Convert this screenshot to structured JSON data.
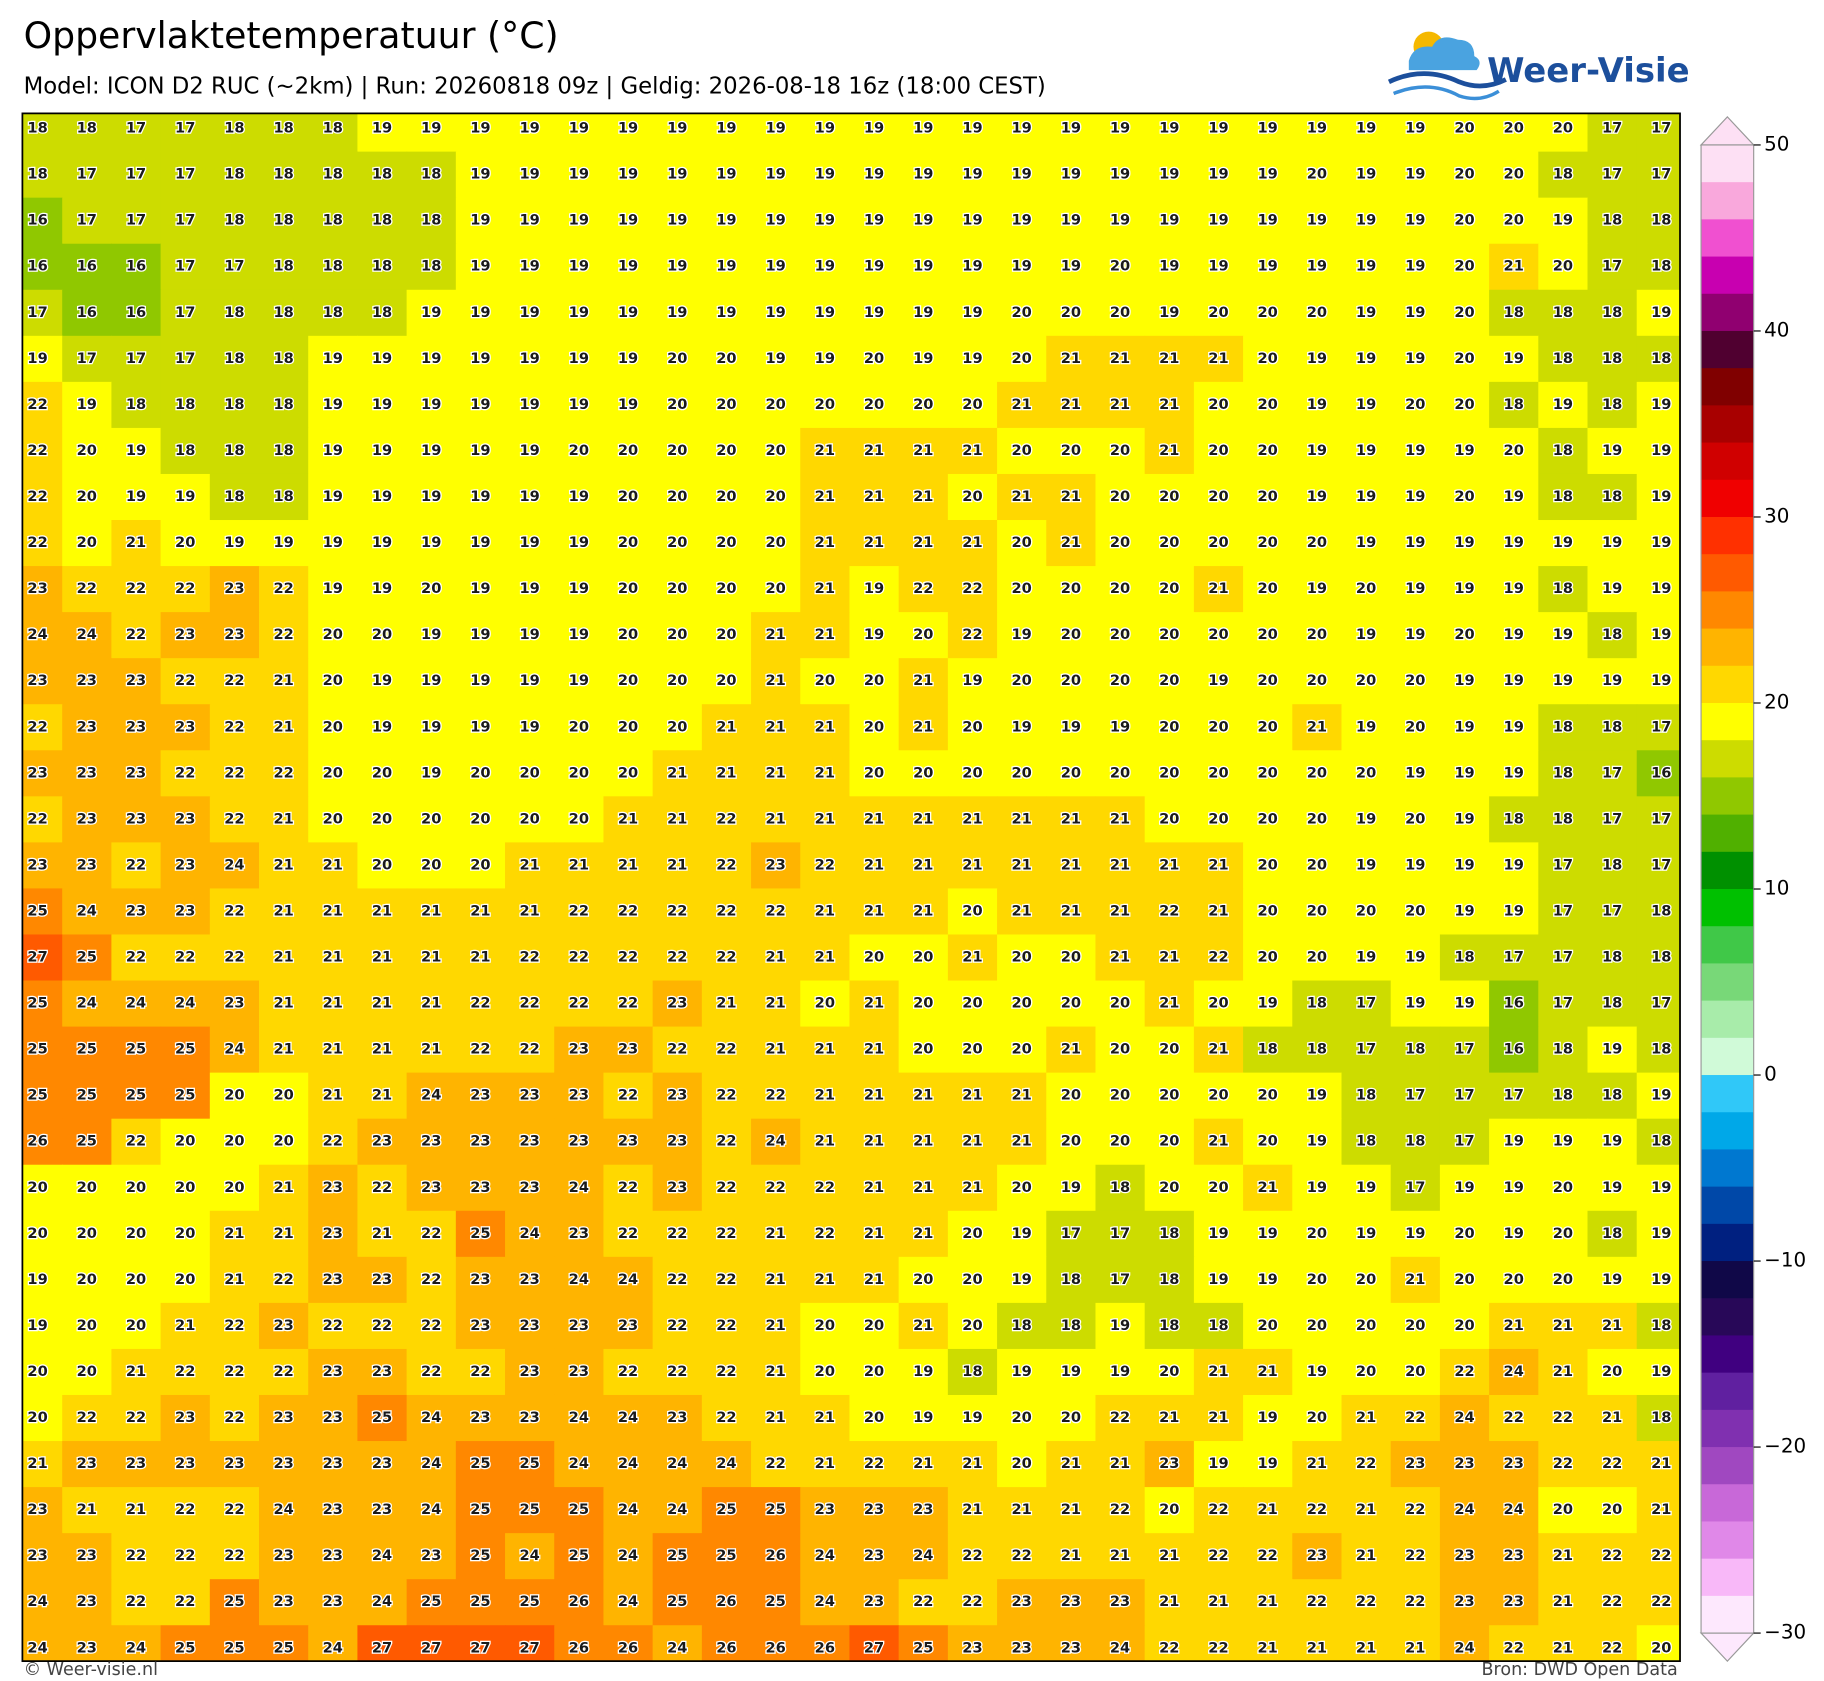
{
  "header": {
    "title": "Oppervlaktetemperatuur (°C)",
    "subtitle": "Model: ICON D2 RUC (~2km)  |  Run: 20260818 09z  |  Geldig: 2026-08-18 16z (18:00 CEST)",
    "logo": "Weer-Visie"
  },
  "map": {
    "type": "grid",
    "rows": [
      [
        18,
        18,
        17,
        17,
        18,
        18,
        18,
        19,
        19,
        19,
        19,
        19,
        19,
        19,
        19,
        19,
        19,
        19,
        19,
        19,
        19,
        19,
        19,
        19,
        19,
        19,
        19,
        19,
        19,
        20,
        20,
        20,
        17,
        17
      ],
      [
        18,
        17,
        17,
        17,
        18,
        18,
        18,
        18,
        18,
        19,
        19,
        19,
        19,
        19,
        19,
        19,
        19,
        19,
        19,
        19,
        19,
        19,
        19,
        19,
        19,
        19,
        20,
        19,
        19,
        20,
        20,
        18,
        17,
        17
      ],
      [
        16,
        17,
        17,
        17,
        18,
        18,
        18,
        18,
        18,
        19,
        19,
        19,
        19,
        19,
        19,
        19,
        19,
        19,
        19,
        19,
        19,
        19,
        19,
        19,
        19,
        19,
        19,
        19,
        19,
        20,
        20,
        19,
        18,
        18
      ],
      [
        16,
        16,
        16,
        17,
        17,
        18,
        18,
        18,
        18,
        19,
        19,
        19,
        19,
        19,
        19,
        19,
        19,
        19,
        19,
        19,
        19,
        19,
        20,
        19,
        19,
        19,
        19,
        19,
        19,
        20,
        21,
        20,
        17,
        18
      ],
      [
        17,
        16,
        16,
        17,
        18,
        18,
        18,
        18,
        19,
        19,
        19,
        19,
        19,
        19,
        19,
        19,
        19,
        19,
        19,
        19,
        20,
        20,
        20,
        19,
        20,
        20,
        20,
        19,
        19,
        20,
        18,
        18,
        18,
        19
      ],
      [
        19,
        17,
        17,
        17,
        18,
        18,
        19,
        19,
        19,
        19,
        19,
        19,
        19,
        20,
        20,
        19,
        19,
        20,
        19,
        19,
        20,
        21,
        21,
        21,
        21,
        20,
        19,
        19,
        19,
        20,
        19,
        18,
        18,
        18
      ],
      [
        22,
        19,
        18,
        18,
        18,
        18,
        19,
        19,
        19,
        19,
        19,
        19,
        19,
        20,
        20,
        20,
        20,
        20,
        20,
        20,
        21,
        21,
        21,
        21,
        20,
        20,
        19,
        19,
        20,
        20,
        18,
        19,
        18,
        19
      ],
      [
        22,
        20,
        19,
        18,
        18,
        18,
        19,
        19,
        19,
        19,
        19,
        20,
        20,
        20,
        20,
        20,
        21,
        21,
        21,
        21,
        20,
        20,
        20,
        21,
        20,
        20,
        19,
        19,
        19,
        19,
        20,
        18,
        19,
        19
      ],
      [
        22,
        20,
        19,
        19,
        18,
        18,
        19,
        19,
        19,
        19,
        19,
        19,
        20,
        20,
        20,
        20,
        21,
        21,
        21,
        20,
        21,
        21,
        20,
        20,
        20,
        20,
        19,
        19,
        19,
        20,
        19,
        18,
        18,
        19
      ],
      [
        22,
        20,
        21,
        20,
        19,
        19,
        19,
        19,
        19,
        19,
        19,
        19,
        20,
        20,
        20,
        20,
        21,
        21,
        21,
        21,
        20,
        21,
        20,
        20,
        20,
        20,
        20,
        19,
        19,
        19,
        19,
        19,
        19,
        19
      ],
      [
        23,
        22,
        22,
        22,
        23,
        22,
        19,
        19,
        20,
        19,
        19,
        19,
        20,
        20,
        20,
        20,
        21,
        19,
        22,
        22,
        20,
        20,
        20,
        20,
        21,
        20,
        19,
        20,
        19,
        19,
        19,
        18,
        19,
        19
      ],
      [
        24,
        24,
        22,
        23,
        23,
        22,
        20,
        20,
        19,
        19,
        19,
        19,
        20,
        20,
        20,
        21,
        21,
        19,
        20,
        22,
        19,
        20,
        20,
        20,
        20,
        20,
        20,
        19,
        19,
        20,
        19,
        19,
        18,
        19
      ],
      [
        23,
        23,
        23,
        22,
        22,
        21,
        20,
        19,
        19,
        19,
        19,
        19,
        20,
        20,
        20,
        21,
        20,
        20,
        21,
        19,
        20,
        20,
        20,
        20,
        19,
        20,
        20,
        20,
        20,
        19,
        19,
        19,
        19,
        19
      ],
      [
        22,
        23,
        23,
        23,
        22,
        21,
        20,
        19,
        19,
        19,
        19,
        20,
        20,
        20,
        21,
        21,
        21,
        20,
        21,
        20,
        19,
        19,
        19,
        20,
        20,
        20,
        21,
        19,
        20,
        19,
        19,
        18,
        18,
        17
      ],
      [
        23,
        23,
        23,
        22,
        22,
        22,
        20,
        20,
        19,
        20,
        20,
        20,
        20,
        21,
        21,
        21,
        21,
        20,
        20,
        20,
        20,
        20,
        20,
        20,
        20,
        20,
        20,
        20,
        19,
        19,
        19,
        18,
        17,
        16
      ],
      [
        22,
        23,
        23,
        23,
        22,
        21,
        20,
        20,
        20,
        20,
        20,
        20,
        21,
        21,
        22,
        21,
        21,
        21,
        21,
        21,
        21,
        21,
        21,
        20,
        20,
        20,
        20,
        19,
        20,
        19,
        18,
        18,
        17,
        17
      ],
      [
        23,
        23,
        22,
        23,
        24,
        21,
        21,
        20,
        20,
        20,
        21,
        21,
        21,
        21,
        22,
        23,
        22,
        21,
        21,
        21,
        21,
        21,
        21,
        21,
        21,
        20,
        20,
        19,
        19,
        19,
        19,
        17,
        18,
        17
      ],
      [
        25,
        24,
        23,
        23,
        22,
        21,
        21,
        21,
        21,
        21,
        21,
        22,
        22,
        22,
        22,
        22,
        21,
        21,
        21,
        20,
        21,
        21,
        21,
        22,
        21,
        20,
        20,
        20,
        20,
        19,
        19,
        17,
        17,
        18
      ],
      [
        27,
        25,
        22,
        22,
        22,
        21,
        21,
        21,
        21,
        21,
        22,
        22,
        22,
        22,
        22,
        21,
        21,
        20,
        20,
        21,
        20,
        20,
        21,
        21,
        22,
        20,
        20,
        19,
        19,
        18,
        17,
        17,
        18,
        18
      ],
      [
        25,
        24,
        24,
        24,
        23,
        21,
        21,
        21,
        21,
        22,
        22,
        22,
        22,
        23,
        21,
        21,
        20,
        21,
        20,
        20,
        20,
        20,
        20,
        21,
        20,
        19,
        18,
        17,
        19,
        19,
        16,
        17,
        18,
        17
      ],
      [
        25,
        25,
        25,
        25,
        24,
        21,
        21,
        21,
        21,
        22,
        22,
        23,
        23,
        22,
        22,
        21,
        21,
        21,
        20,
        20,
        20,
        21,
        20,
        20,
        21,
        18,
        18,
        17,
        18,
        17,
        16,
        18,
        19,
        18
      ],
      [
        25,
        25,
        25,
        25,
        20,
        20,
        21,
        21,
        24,
        23,
        23,
        23,
        22,
        23,
        22,
        22,
        21,
        21,
        21,
        21,
        21,
        20,
        20,
        20,
        20,
        20,
        19,
        18,
        17,
        17,
        17,
        18,
        18,
        19
      ],
      [
        26,
        25,
        22,
        20,
        20,
        20,
        22,
        23,
        23,
        23,
        23,
        23,
        23,
        23,
        22,
        24,
        21,
        21,
        21,
        21,
        21,
        20,
        20,
        20,
        21,
        20,
        19,
        18,
        18,
        17,
        19,
        19,
        19,
        18
      ],
      [
        20,
        20,
        20,
        20,
        20,
        21,
        23,
        22,
        23,
        23,
        23,
        24,
        22,
        23,
        22,
        22,
        22,
        21,
        21,
        21,
        20,
        19,
        18,
        20,
        20,
        21,
        19,
        19,
        17,
        19,
        19,
        20,
        19,
        19
      ],
      [
        20,
        20,
        20,
        20,
        21,
        21,
        23,
        21,
        22,
        25,
        24,
        23,
        22,
        22,
        22,
        21,
        22,
        21,
        21,
        20,
        19,
        17,
        17,
        18,
        19,
        19,
        20,
        19,
        19,
        20,
        19,
        20,
        18,
        19
      ],
      [
        19,
        20,
        20,
        20,
        21,
        22,
        23,
        23,
        22,
        23,
        23,
        24,
        24,
        22,
        22,
        21,
        21,
        21,
        20,
        20,
        19,
        18,
        17,
        18,
        19,
        19,
        20,
        20,
        21,
        20,
        20,
        20,
        19,
        19
      ],
      [
        19,
        20,
        20,
        21,
        22,
        23,
        22,
        22,
        22,
        23,
        23,
        23,
        23,
        22,
        22,
        21,
        20,
        20,
        21,
        20,
        18,
        18,
        19,
        18,
        18,
        20,
        20,
        20,
        20,
        20,
        21,
        21,
        21,
        18
      ],
      [
        20,
        20,
        21,
        22,
        22,
        22,
        23,
        23,
        22,
        22,
        23,
        23,
        22,
        22,
        22,
        21,
        20,
        20,
        19,
        18,
        19,
        19,
        19,
        20,
        21,
        21,
        19,
        20,
        20,
        22,
        24,
        21,
        20,
        19
      ],
      [
        20,
        22,
        22,
        23,
        22,
        23,
        23,
        25,
        24,
        23,
        23,
        24,
        24,
        23,
        22,
        21,
        21,
        20,
        19,
        19,
        20,
        20,
        22,
        21,
        21,
        19,
        20,
        21,
        22,
        24,
        22,
        22,
        21,
        18
      ],
      [
        21,
        23,
        23,
        23,
        23,
        23,
        23,
        23,
        24,
        25,
        25,
        24,
        24,
        24,
        24,
        22,
        21,
        22,
        21,
        21,
        20,
        21,
        21,
        23,
        19,
        19,
        21,
        22,
        23,
        23,
        23,
        22,
        22,
        21
      ],
      [
        23,
        21,
        21,
        22,
        22,
        24,
        23,
        23,
        24,
        25,
        25,
        25,
        24,
        24,
        25,
        25,
        23,
        23,
        23,
        21,
        21,
        21,
        22,
        20,
        22,
        21,
        22,
        21,
        22,
        24,
        24,
        20,
        20,
        21
      ],
      [
        23,
        23,
        22,
        22,
        22,
        23,
        23,
        24,
        23,
        25,
        24,
        25,
        24,
        25,
        25,
        26,
        24,
        23,
        24,
        22,
        22,
        21,
        21,
        21,
        22,
        22,
        23,
        21,
        22,
        23,
        23,
        21,
        22,
        22
      ],
      [
        24,
        23,
        22,
        22,
        25,
        23,
        23,
        24,
        25,
        25,
        25,
        26,
        24,
        25,
        26,
        25,
        24,
        23,
        22,
        22,
        23,
        23,
        23,
        21,
        21,
        21,
        22,
        22,
        22,
        23,
        23,
        21,
        22,
        22
      ],
      [
        24,
        23,
        24,
        25,
        25,
        25,
        24,
        27,
        27,
        27,
        27,
        26,
        26,
        24,
        26,
        26,
        26,
        27,
        25,
        23,
        23,
        23,
        24,
        22,
        22,
        21,
        21,
        21,
        21,
        24,
        22,
        21,
        22,
        20
      ]
    ]
  },
  "colorbar": {
    "lim": [
      -30,
      50
    ],
    "ticks": [
      50,
      40,
      30,
      20,
      10,
      0,
      {
        "value": -10,
        "label": "−10"
      },
      {
        "value": -20,
        "label": "−20"
      },
      {
        "value": -30,
        "label": "−30"
      }
    ],
    "colors": [
      "#fde0f4",
      "#f9a8dc",
      "#f050d0",
      "#c800b0",
      "#900070",
      "#500030",
      "#800000",
      "#a80000",
      "#d00000",
      "#f00000",
      "#ff3000",
      "#ff5a00",
      "#ff8800",
      "#ffb400",
      "#ffd800",
      "#ffff00",
      "#cddc00",
      "#90c800",
      "#50b000",
      "#009000",
      "#00c000",
      "#40c848",
      "#78d878",
      "#a8ecaa",
      "#d0fad8",
      "#30c8f8",
      "#00a8e8",
      "#0078d0",
      "#0048a8",
      "#002080",
      "#100848",
      "#280858",
      "#400080",
      "#6020a0",
      "#8030b0",
      "#a048c0",
      "#c868d8",
      "#e088e8",
      "#f8b8f8",
      "#fde8fd"
    ]
  },
  "footer": {
    "left": "© Weer-visie.nl",
    "right": "Bron: DWD Open Data"
  }
}
